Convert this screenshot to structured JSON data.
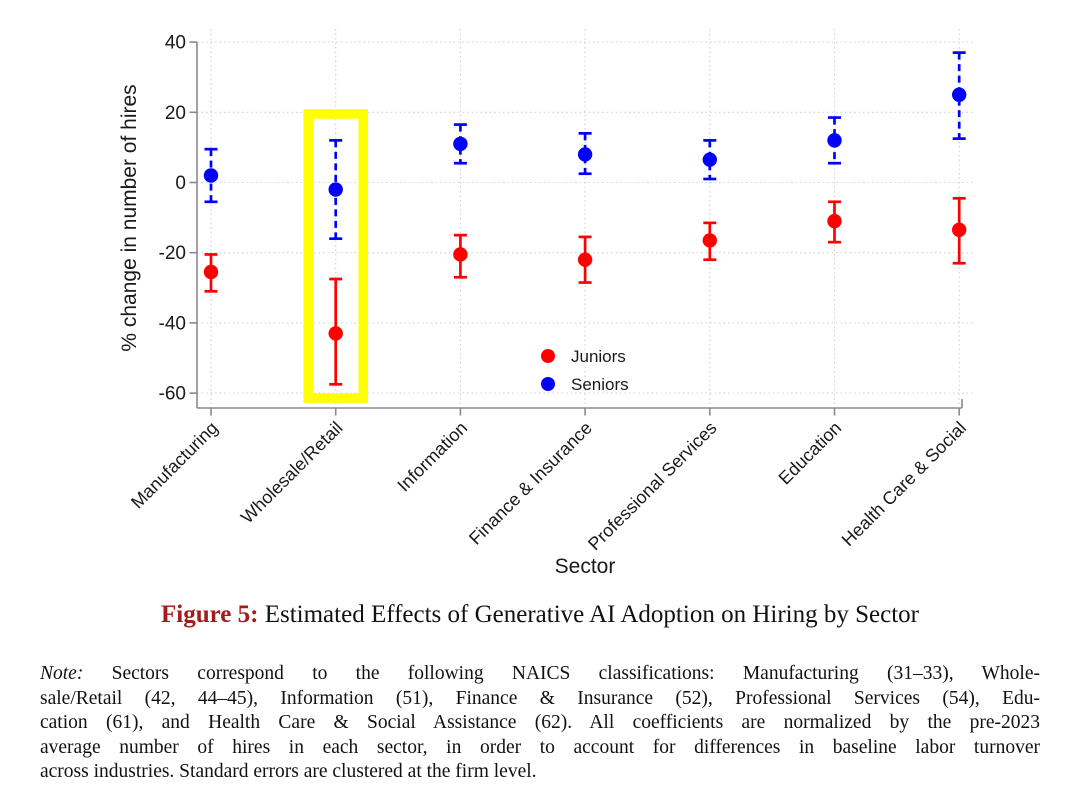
{
  "figure": {
    "caption_label": "Figure 5:",
    "caption_text": " Estimated Effects of Generative AI Adoption on Hiring by Sector",
    "caption_color": "#a21c1c"
  },
  "note": {
    "prefix": "Note:",
    "lines": [
      "  Sectors correspond to the following NAICS classifications:  Manufacturing (31–33), Whole-",
      "sale/Retail (42, 44–45), Information (51), Finance & Insurance (52), Professional Services (54), Edu-",
      "cation (61), and Health Care & Social Assistance (62). All coefficients are normalized by the pre-2023",
      "average number of hires in each sector, in order to account for differences in baseline labor turnover",
      "across industries. Standard errors are clustered at the firm level."
    ]
  },
  "chart_data": {
    "type": "scatter",
    "title": "",
    "xlabel": "Sector",
    "ylabel": "% change in number of hires",
    "ylim": [
      -60,
      40
    ],
    "yticks": [
      40,
      20,
      0,
      -20,
      -40,
      -60
    ],
    "grid": "dotted",
    "legend_position": "inside-bottom-center",
    "categories": [
      "Manufacturing",
      "Wholesale/Retail",
      "Information",
      "Finance & Insurance",
      "Professional Services",
      "Education",
      "Health Care & Social"
    ],
    "series": [
      {
        "name": "Juniors",
        "color": "#ff0000",
        "style": "solid",
        "values": [
          -25.5,
          -43,
          -20.5,
          -22,
          -16.5,
          -11,
          -13.5
        ],
        "ci_low": [
          -31,
          -57.5,
          -27,
          -28.5,
          -22,
          -17,
          -23
        ],
        "ci_high": [
          -20.5,
          -27.5,
          -15,
          -15.5,
          -11.5,
          -5.5,
          -4.5
        ]
      },
      {
        "name": "Seniors",
        "color": "#0000ff",
        "style": "dashed",
        "values": [
          2,
          -2,
          11,
          8,
          6.5,
          12,
          25
        ],
        "ci_low": [
          -5.5,
          -16,
          5.5,
          2.5,
          1,
          5.5,
          12.5
        ],
        "ci_high": [
          9.5,
          12,
          16.5,
          14,
          12,
          18.5,
          37
        ]
      }
    ],
    "highlight": {
      "category": "Wholesale/Retail",
      "category_index": 1,
      "color": "#ffff00"
    }
  }
}
